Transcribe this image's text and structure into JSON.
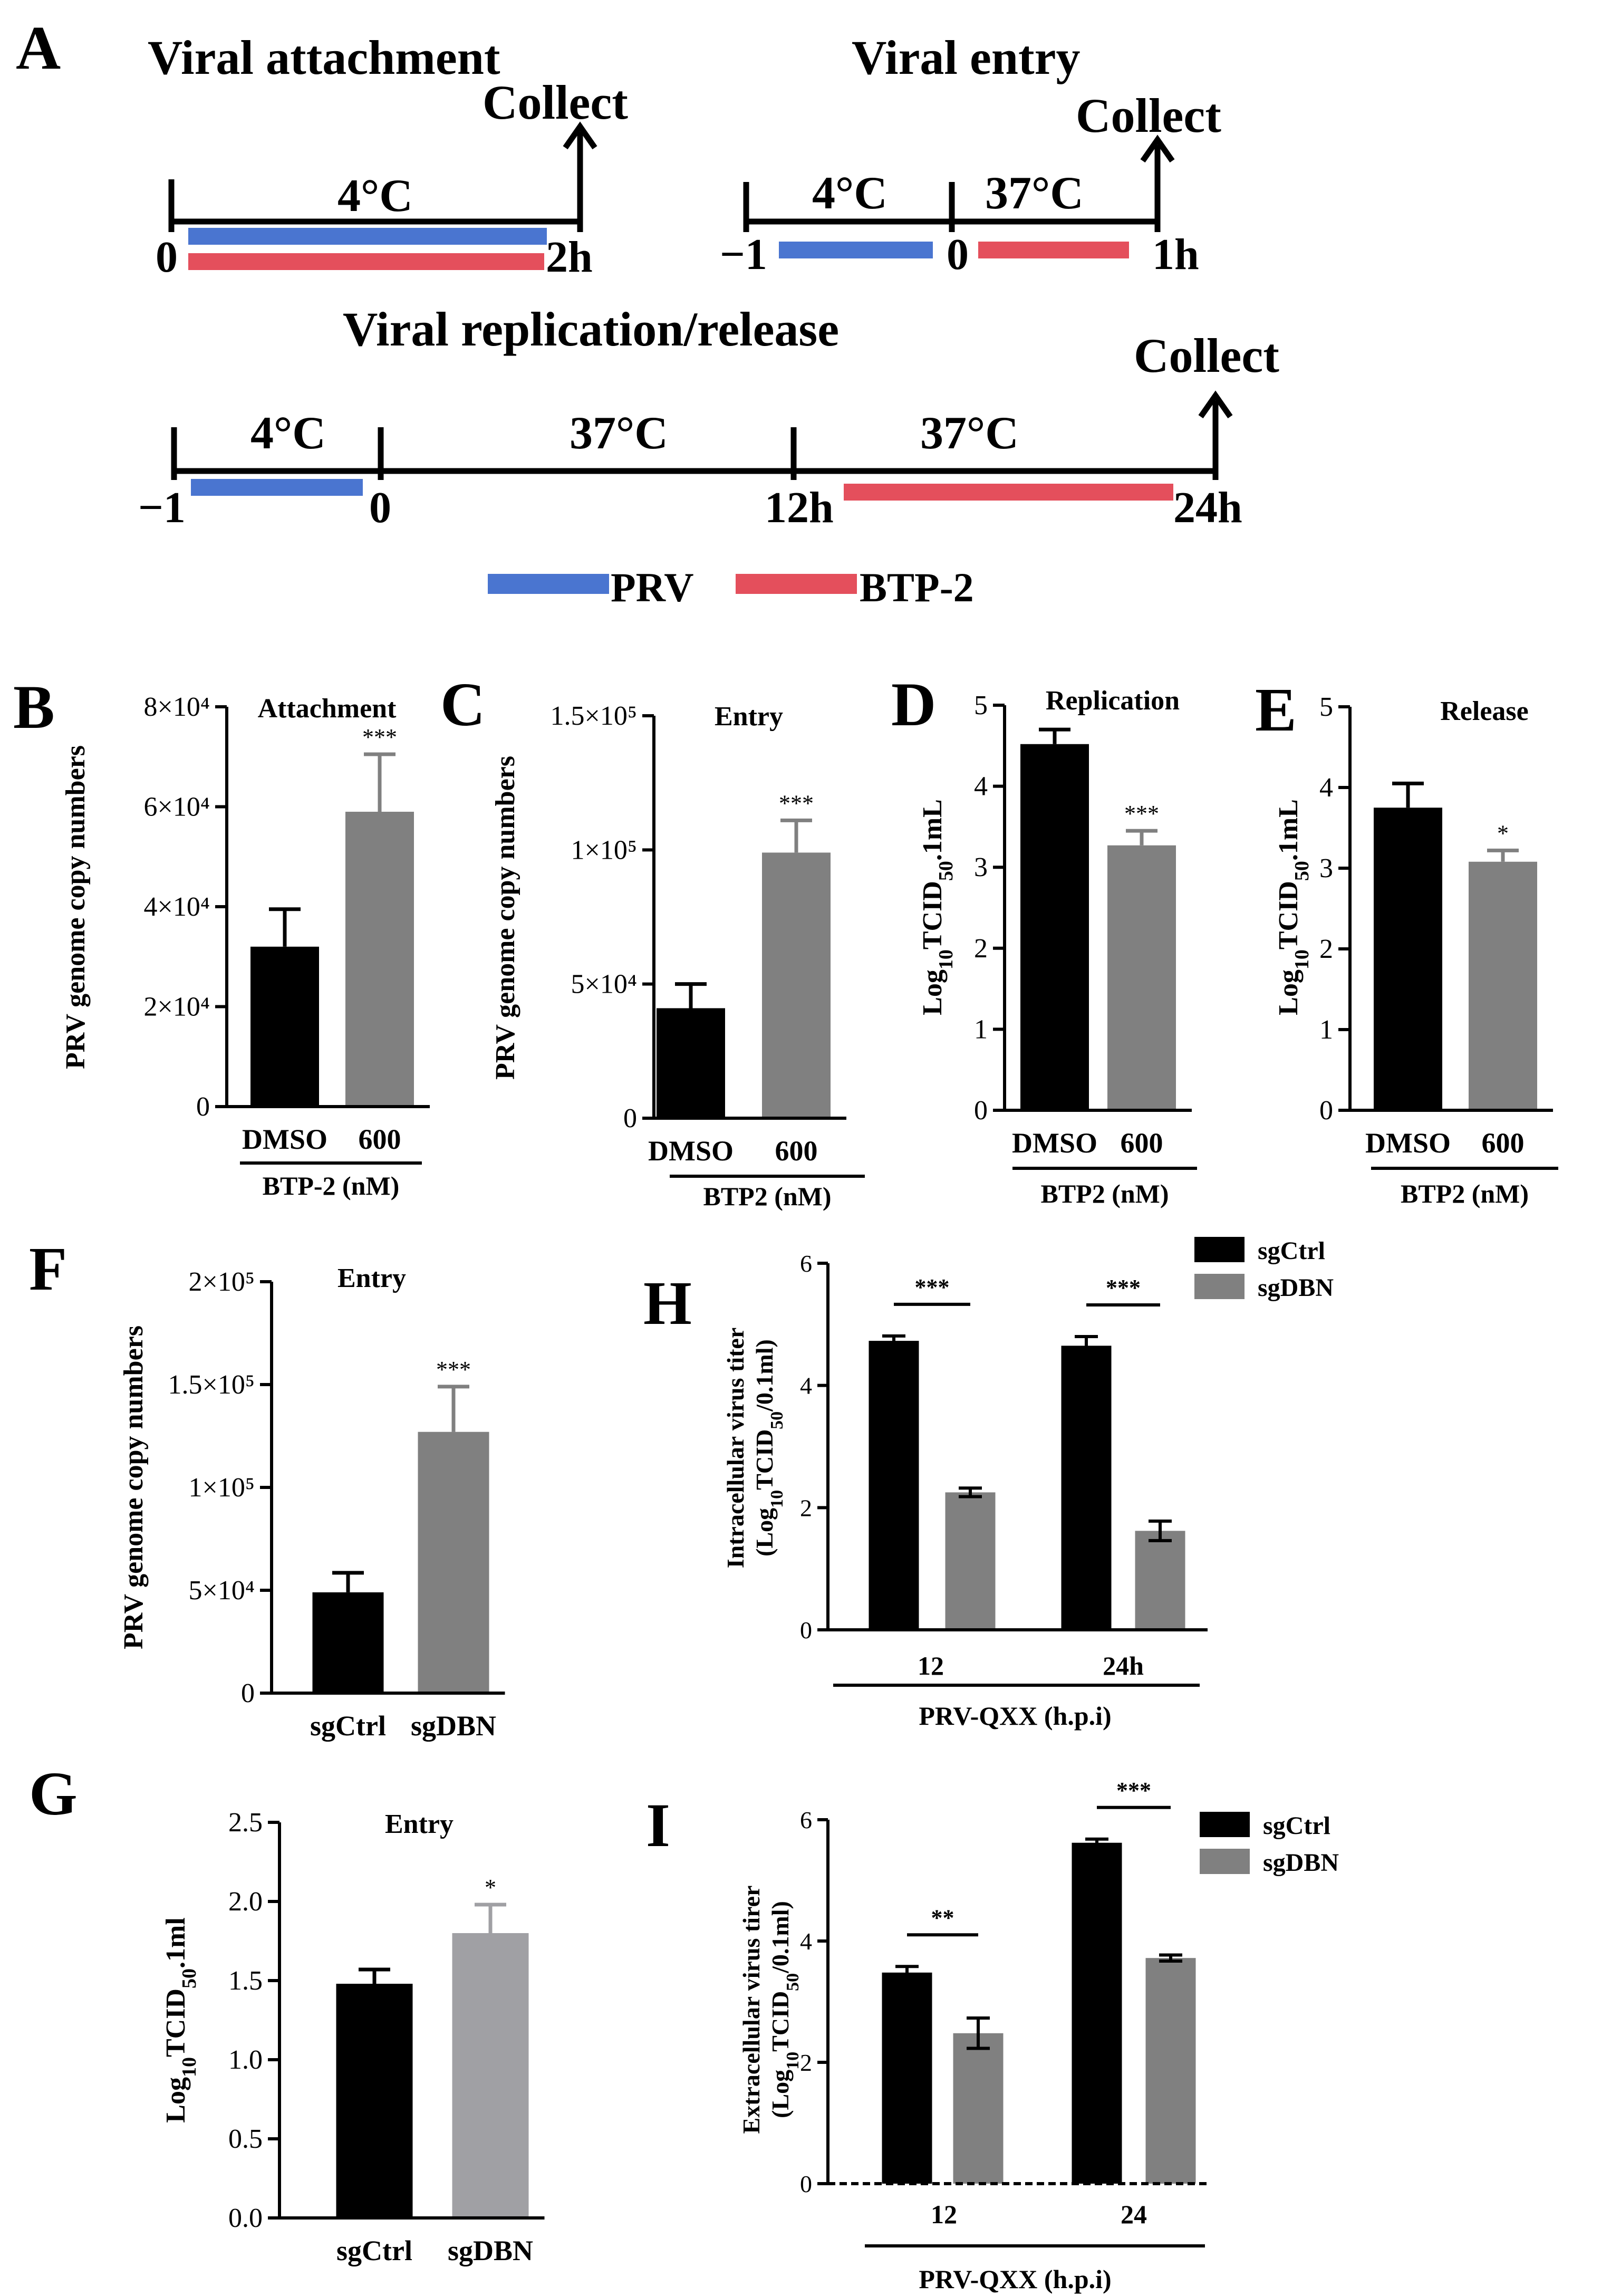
{
  "colors": {
    "prv": "#4a75d0",
    "btp": "#e44f5c",
    "black_bar": "#000000",
    "grey_bar": "#808080",
    "grey_bar_light": "#a0a0a4"
  },
  "panel_a": {
    "letter": "A",
    "attachment": {
      "title": "Viral attachment",
      "collect": "Collect",
      "temp": "4°C",
      "start": "0",
      "end": "2h"
    },
    "entry": {
      "title": "Viral entry",
      "collect": "Collect",
      "temp1": "4°C",
      "temp2": "37°C",
      "start": "−1",
      "mid": "0",
      "end": "1h"
    },
    "replication": {
      "title": "Viral replication/release",
      "collect": "Collect",
      "temp1": "4°C",
      "temp2": "37°C",
      "temp3": "37°C",
      "t0": "−1",
      "t1": "0",
      "t2": "12h",
      "t3": "24h"
    },
    "legend": {
      "prv": "PRV",
      "btp": "BTP-2"
    }
  },
  "chart_data": [
    {
      "panel": "B",
      "type": "bar",
      "title": "Attachment",
      "ylabel": "PRV genome copy numbers",
      "categories": [
        "DMSO",
        "600"
      ],
      "group_label": "BTP-2 (nM)",
      "values": [
        32000,
        59000
      ],
      "errors": [
        7500,
        11500
      ],
      "ylim": [
        0,
        80000
      ],
      "yticks": [
        "0",
        "2×10⁴",
        "4×10⁴",
        "6×10⁴",
        "8×10⁴"
      ],
      "significance": [
        "",
        "***"
      ]
    },
    {
      "panel": "C",
      "type": "bar",
      "title": "Entry",
      "ylabel": "PRV genome copy numbers",
      "categories": [
        "DMSO",
        "600"
      ],
      "group_label": "BTP2 (nM)",
      "values": [
        41000,
        99000
      ],
      "errors": [
        9000,
        12000
      ],
      "ylim": [
        0,
        150000
      ],
      "yticks": [
        "0",
        "5×10⁴",
        "1×10⁵",
        "1.5×10⁵"
      ],
      "significance": [
        "",
        "***"
      ]
    },
    {
      "panel": "D",
      "type": "bar",
      "title": "Replication",
      "ylabel": "Log10TCID50/0.1mL",
      "categories": [
        "DMSO",
        "600"
      ],
      "group_label": "BTP2 (nM)",
      "values": [
        4.52,
        3.27
      ],
      "errors": [
        0.18,
        0.18
      ],
      "ylim": [
        0,
        5
      ],
      "yticks": [
        "0",
        "1",
        "2",
        "3",
        "4",
        "5"
      ],
      "significance": [
        "",
        "***"
      ]
    },
    {
      "panel": "E",
      "type": "bar",
      "title": "Release",
      "ylabel": "Log10TCID50/0.1mL",
      "categories": [
        "DMSO",
        "600"
      ],
      "group_label": "BTP2 (nM)",
      "values": [
        3.75,
        3.08
      ],
      "errors": [
        0.3,
        0.14
      ],
      "ylim": [
        0,
        5
      ],
      "yticks": [
        "0",
        "1",
        "2",
        "3",
        "4",
        "5"
      ],
      "significance": [
        "",
        "*"
      ]
    },
    {
      "panel": "F",
      "type": "bar",
      "title": "Entry",
      "ylabel": "PRV genome copy numbers",
      "categories": [
        "sgCtrl",
        "sgDBN"
      ],
      "values": [
        49000,
        127000
      ],
      "errors": [
        9500,
        22000
      ],
      "ylim": [
        0,
        200000
      ],
      "yticks": [
        "0",
        "5×10⁴",
        "1×10⁵",
        "1.5×10⁵",
        "2×10⁵"
      ],
      "significance": [
        "",
        "***"
      ]
    },
    {
      "panel": "G",
      "type": "bar",
      "title": "Entry",
      "ylabel": "Log10TCID50/0.1ml",
      "categories": [
        "sgCtrl",
        "sgDBN"
      ],
      "values": [
        1.48,
        1.8
      ],
      "errors": [
        0.09,
        0.18
      ],
      "ylim": [
        0,
        2.5
      ],
      "yticks": [
        "0.0",
        "0.5",
        "1.0",
        "1.5",
        "2.0",
        "2.5"
      ],
      "significance": [
        "",
        "*"
      ]
    },
    {
      "panel": "H",
      "type": "bar",
      "ylabel1": "Intracellular virus titer",
      "ylabel2": "(Log10TCID50/0.1ml)",
      "categories": [
        "12",
        "24h"
      ],
      "group_label": "PRV-QXX (h.p.i)",
      "series": [
        {
          "name": "sgCtrl",
          "values": [
            4.73,
            4.65
          ],
          "errors": [
            0.08,
            0.15
          ]
        },
        {
          "name": "sgDBN",
          "values": [
            2.25,
            1.62
          ],
          "errors": [
            0.07,
            0.16
          ]
        }
      ],
      "ylim": [
        0,
        6
      ],
      "yticks": [
        "0",
        "2",
        "4",
        "6"
      ],
      "significance": [
        "***",
        "***"
      ]
    },
    {
      "panel": "I",
      "type": "bar",
      "ylabel1": "Extracellular virus tirer",
      "ylabel2": "(Log10TCID50/0.1ml)",
      "categories": [
        "12",
        "24"
      ],
      "group_label": "PRV-QXX (h.p.i)",
      "series": [
        {
          "name": "sgCtrl",
          "values": [
            3.48,
            5.62
          ],
          "errors": [
            0.1,
            0.06
          ]
        },
        {
          "name": "sgDBN",
          "values": [
            2.48,
            3.72
          ],
          "errors": [
            0.25,
            0.05
          ]
        }
      ],
      "ylim": [
        0,
        6
      ],
      "yticks": [
        "0",
        "2",
        "4",
        "6"
      ],
      "significance": [
        "**",
        "***"
      ]
    }
  ]
}
